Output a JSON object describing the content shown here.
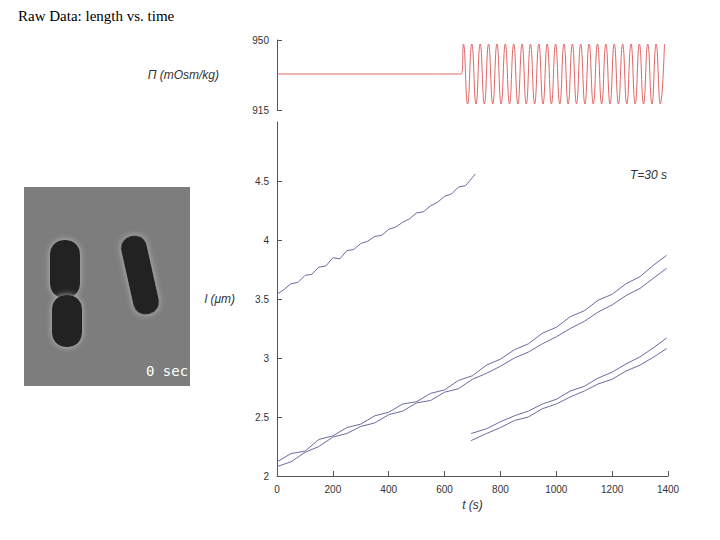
{
  "title": "Raw Data: length vs. time",
  "image_label": "0 sec",
  "chart_data": [
    {
      "type": "line",
      "ylabel": "Π (mOsm/kg)",
      "xlim": [
        0,
        1400
      ],
      "ylim": [
        915,
        950
      ],
      "yticks": [
        915,
        950
      ],
      "tick_labels": "y",
      "series": [
        {
          "color": "#e06666",
          "x": [
            0,
            660,
            667.5,
            682.5,
            697.5,
            712.5,
            727.5,
            742.5,
            757.5,
            772.5,
            787.5,
            802.5,
            817.5,
            832.5,
            847.5,
            862.5,
            877.5,
            892.5,
            907.5,
            922.5,
            937.5,
            952.5,
            967.5,
            982.5,
            997.5,
            1012.5,
            1027.5,
            1042.5,
            1057.5,
            1072.5,
            1087.5,
            1102.5,
            1117.5,
            1132.5,
            1147.5,
            1162.5,
            1177.5,
            1192.5,
            1207.5,
            1222.5,
            1237.5,
            1252.5,
            1267.5,
            1282.5,
            1297.5,
            1312.5,
            1327.5,
            1342.5,
            1357.5,
            1372.5,
            1387.5
          ],
          "values": [
            933,
            933,
            948,
            918,
            948,
            918,
            948,
            918,
            948,
            918,
            948,
            918,
            948,
            918,
            948,
            918,
            948,
            918,
            948,
            918,
            948,
            918,
            948,
            918,
            948,
            918,
            948,
            918,
            948,
            918,
            948,
            918,
            948,
            918,
            948,
            918,
            948,
            918,
            948,
            918,
            948,
            918,
            948,
            918,
            948,
            918,
            948,
            918,
            948,
            918,
            948
          ]
        }
      ]
    },
    {
      "type": "line",
      "xlabel": "t (s)",
      "ylabel": "l (μm)",
      "annotation": "T=30 s",
      "xlim": [
        0,
        1400
      ],
      "ylim": [
        2,
        5
      ],
      "xticks": [
        0,
        200,
        400,
        600,
        800,
        1000,
        1200,
        1400
      ],
      "yticks": [
        2,
        2.5,
        3,
        3.5,
        4,
        4.5
      ],
      "series": [
        {
          "color": "#6b6b9e",
          "x": [
            0,
            25,
            50,
            75,
            100,
            125,
            150,
            175,
            200,
            225,
            250,
            275,
            300,
            325,
            350,
            375,
            400,
            425,
            450,
            475,
            500,
            525,
            550,
            575,
            600,
            625,
            650,
            675,
            700,
            710
          ],
          "values": [
            3.54,
            3.58,
            3.63,
            3.64,
            3.7,
            3.71,
            3.77,
            3.78,
            3.85,
            3.84,
            3.91,
            3.92,
            3.97,
            3.99,
            4.03,
            4.04,
            4.09,
            4.11,
            4.15,
            4.18,
            4.23,
            4.24,
            4.29,
            4.32,
            4.37,
            4.39,
            4.45,
            4.46,
            4.53,
            4.56
          ]
        },
        {
          "color": "#6b6b9e",
          "x": [
            0,
            50,
            100,
            150,
            200,
            250,
            300,
            350,
            400,
            450,
            500,
            550,
            600,
            650,
            700,
            750,
            800,
            850,
            900,
            950,
            1000,
            1050,
            1100,
            1150,
            1200,
            1250,
            1300,
            1350,
            1395
          ],
          "values": [
            2.12,
            2.19,
            2.21,
            2.31,
            2.34,
            2.41,
            2.44,
            2.51,
            2.54,
            2.61,
            2.63,
            2.7,
            2.73,
            2.81,
            2.85,
            2.94,
            2.99,
            3.07,
            3.12,
            3.21,
            3.26,
            3.35,
            3.4,
            3.49,
            3.54,
            3.63,
            3.69,
            3.79,
            3.87
          ]
        },
        {
          "color": "#6b6b9e",
          "x": [
            0,
            50,
            100,
            150,
            200,
            250,
            300,
            350,
            400,
            450,
            500,
            550,
            600,
            650,
            700,
            750,
            800,
            850,
            900,
            950,
            1000,
            1050,
            1100,
            1150,
            1200,
            1250,
            1300,
            1350,
            1395
          ],
          "values": [
            2.08,
            2.12,
            2.2,
            2.25,
            2.33,
            2.36,
            2.42,
            2.45,
            2.52,
            2.55,
            2.62,
            2.64,
            2.71,
            2.74,
            2.82,
            2.87,
            2.93,
            3.0,
            3.05,
            3.12,
            3.18,
            3.25,
            3.31,
            3.39,
            3.45,
            3.53,
            3.59,
            3.68,
            3.76
          ]
        },
        {
          "color": "#6b6b9e",
          "x": [
            695,
            750,
            800,
            850,
            900,
            950,
            1000,
            1050,
            1100,
            1150,
            1200,
            1250,
            1300,
            1350,
            1395
          ],
          "values": [
            2.36,
            2.4,
            2.46,
            2.51,
            2.55,
            2.61,
            2.65,
            2.72,
            2.76,
            2.83,
            2.88,
            2.95,
            3.01,
            3.09,
            3.17
          ]
        },
        {
          "color": "#6b6b9e",
          "x": [
            695,
            750,
            800,
            850,
            900,
            950,
            1000,
            1050,
            1100,
            1150,
            1200,
            1250,
            1300,
            1350,
            1395
          ],
          "values": [
            2.3,
            2.36,
            2.41,
            2.47,
            2.5,
            2.57,
            2.61,
            2.67,
            2.72,
            2.78,
            2.82,
            2.89,
            2.94,
            3.01,
            3.08
          ]
        }
      ]
    }
  ]
}
